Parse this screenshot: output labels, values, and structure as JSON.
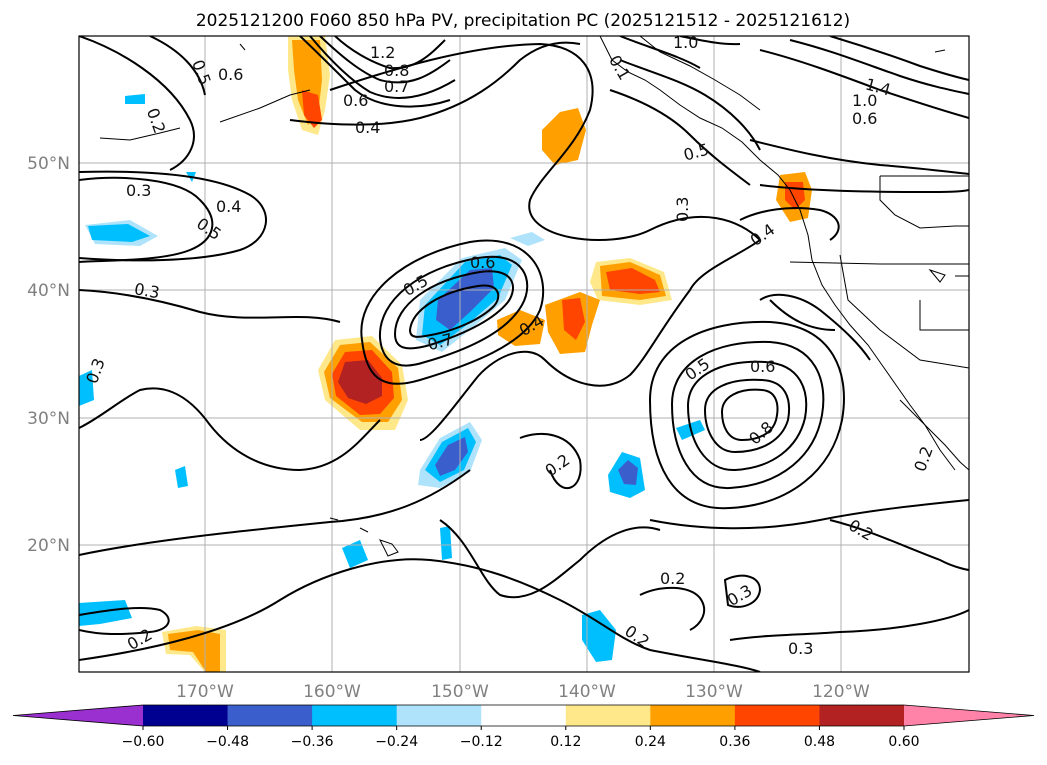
{
  "map": {
    "title": "2025121200 F060 850 hPa PV, precipitation PC (2025121512 - 2025121612)",
    "lat_labels": [
      "50°N",
      "40°N",
      "30°N",
      "20°N"
    ],
    "lon_labels": [
      "170°W",
      "160°W",
      "150°W",
      "140°W",
      "130°W",
      "120°W"
    ],
    "contour_labels": [
      "1.2",
      "0.6",
      "0.5",
      "0.8",
      "0.7",
      "0.6",
      "0.4",
      "0.2",
      "0.3",
      "0.4",
      "0.5",
      "0.3",
      "1.0",
      "0.1",
      "0.5",
      "1.4",
      "1.0",
      "0.6",
      "0.3",
      "0.4",
      "0.5",
      "0.6",
      "0.7",
      "0.4",
      "0.3",
      "0.5",
      "0.6",
      "0.8",
      "0.2",
      "0.2",
      "0.2",
      "0.2",
      "0.3",
      "0.2",
      "0.3",
      "0.2"
    ]
  },
  "colorbar": {
    "ticks": [
      "−0.60",
      "−0.48",
      "−0.36",
      "−0.24",
      "−0.12",
      "0.12",
      "0.24",
      "0.36",
      "0.48",
      "0.60"
    ],
    "colors": [
      "#9b30d0",
      "#000090",
      "#3a5fcd",
      "#00bfff",
      "#aee3fb",
      "#ffffff",
      "#ffe88a",
      "#ffa000",
      "#ff4500",
      "#b22222",
      "#ff82a9"
    ]
  }
}
